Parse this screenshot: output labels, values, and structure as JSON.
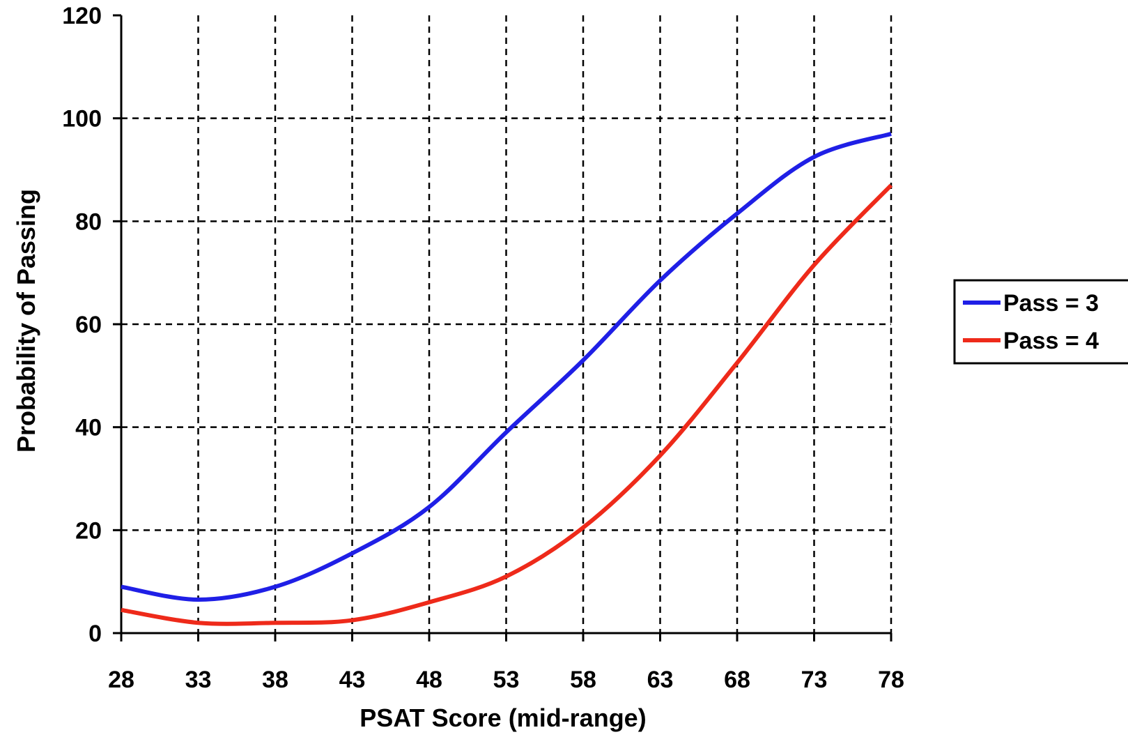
{
  "chart_data": {
    "type": "line",
    "xlabel": "PSAT Score (mid-range)",
    "ylabel": "Probability of Passing",
    "xlim": [
      28,
      78
    ],
    "ylim": [
      0,
      120
    ],
    "x_ticks": [
      28,
      33,
      38,
      43,
      48,
      53,
      58,
      63,
      68,
      73,
      78
    ],
    "y_ticks": [
      0,
      20,
      40,
      60,
      80,
      100,
      120
    ],
    "grid": true,
    "legend_position": "right",
    "series": [
      {
        "name": "Pass = 3",
        "color": "#1f1fe6",
        "points": [
          [
            28,
            9
          ],
          [
            33,
            6.5
          ],
          [
            38,
            9
          ],
          [
            43,
            15.5
          ],
          [
            48,
            24.5
          ],
          [
            53,
            39
          ],
          [
            58,
            53
          ],
          [
            63,
            68.5
          ],
          [
            68,
            81.5
          ],
          [
            73,
            92.5
          ],
          [
            78,
            97
          ]
        ]
      },
      {
        "name": "Pass = 4",
        "color": "#ee2a1a",
        "points": [
          [
            28,
            4.5
          ],
          [
            33,
            2
          ],
          [
            38,
            2
          ],
          [
            43,
            2.5
          ],
          [
            48,
            6
          ],
          [
            53,
            11
          ],
          [
            58,
            20.5
          ],
          [
            63,
            34.5
          ],
          [
            68,
            52.5
          ],
          [
            73,
            71.5
          ],
          [
            78,
            87
          ]
        ]
      }
    ]
  }
}
